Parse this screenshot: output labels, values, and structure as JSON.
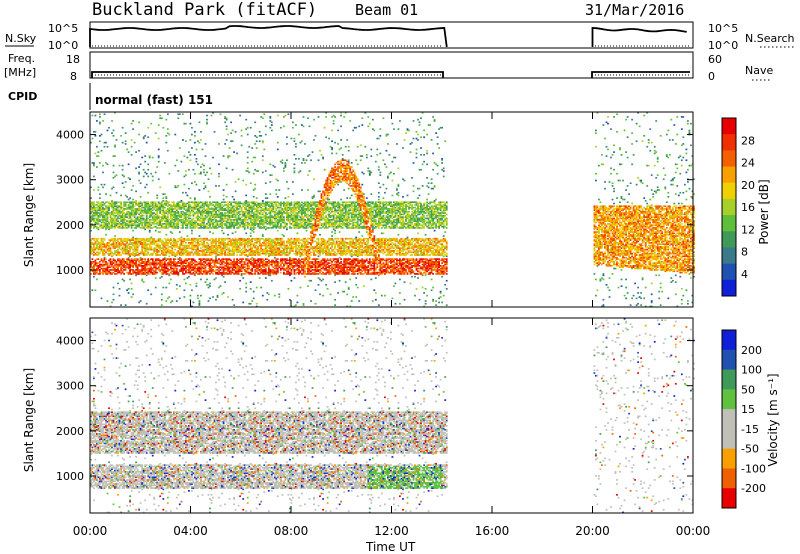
{
  "header": {
    "station": "Buckland Park (fitACF)",
    "beam": "Beam 01",
    "date": "31/Mar/2016"
  },
  "aux_panels": {
    "nsky_label": "N.Sky",
    "nsky_ticks": [
      "10^5",
      "10^0"
    ],
    "nsearch_label": "N.Search",
    "nsearch_ticks": [
      "10^5",
      "10^0"
    ],
    "freq_label_1": "Freq.",
    "freq_label_2": "[MHz]",
    "freq_ticks": [
      "18",
      "8"
    ],
    "nave_label": "Nave",
    "nave_ticks": [
      "60",
      "0"
    ],
    "cpid_label": "CPID",
    "cpid_text": "normal (fast) 151"
  },
  "x_axis": {
    "title": "Time UT",
    "tick_labels": [
      "00:00",
      "04:00",
      "08:00",
      "12:00",
      "16:00",
      "20:00",
      "00:00"
    ],
    "range_hours": [
      0,
      24
    ]
  },
  "panels": {
    "power": {
      "ylabel": "Slant Range [km]",
      "yticks": [
        "1000",
        "2000",
        "3000",
        "4000"
      ],
      "colorbar_label": "Power [dB]",
      "colorbar_ticks": [
        "28",
        "24",
        "20",
        "16",
        "12",
        "8",
        "4"
      ]
    },
    "velocity": {
      "ylabel": "Slant Range [km]",
      "yticks": [
        "1000",
        "2000",
        "3000",
        "4000"
      ],
      "colorbar_label": "Velocity [m s⁻¹]",
      "colorbar_ticks": [
        "200",
        "100",
        "50",
        "15",
        "-15",
        "-50",
        "-100",
        "-200"
      ]
    }
  },
  "chart_data": [
    {
      "type": "heatmap",
      "title": "Power",
      "xlabel": "Time UT",
      "ylabel": "Slant Range [km]",
      "xlim": [
        0,
        24
      ],
      "ylim": [
        180,
        4500
      ],
      "colorbar": {
        "label": "Power [dB]",
        "range": [
          0,
          32
        ],
        "colors": [
          "#1020d8",
          "#2050b0",
          "#3a7a8a",
          "#3f9a5a",
          "#5fbf3a",
          "#a8d02a",
          "#f0d000",
          "#f8a000",
          "#f46000",
          "#f03000",
          "#e80000"
        ]
      },
      "data_gap_hours": [
        14.2,
        20.0
      ],
      "features": [
        {
          "name": "strong band",
          "t0": 0,
          "t1": 14.2,
          "r0": 900,
          "r1": 1250,
          "level_db": 27
        },
        {
          "name": "mid band",
          "t0": 0,
          "t1": 14.2,
          "r0": 1300,
          "r1": 1700,
          "level_db": 20
        },
        {
          "name": "upper band",
          "t0": 0,
          "t1": 14.2,
          "r0": 1900,
          "r1": 2500,
          "level_db": 14
        },
        {
          "name": "rising echo",
          "t0": 8.5,
          "t1": 11.5,
          "r0": 1000,
          "r1": 3300,
          "level_db": 24
        },
        {
          "name": "evening band",
          "t0": 20,
          "t1": 24,
          "r0": 900,
          "r1": 2400,
          "level_db": 22
        }
      ]
    },
    {
      "type": "heatmap",
      "title": "Velocity",
      "xlabel": "Time UT",
      "ylabel": "Slant Range [km]",
      "xlim": [
        0,
        24
      ],
      "ylim": [
        180,
        4500
      ],
      "colorbar": {
        "label": "Velocity [m s⁻¹]",
        "range": [
          -250,
          250
        ],
        "colors": [
          "#e80000",
          "#f06000",
          "#f8a000",
          "#c0c0b8",
          "#c0c0b8",
          "#60c040",
          "#3f9a5a",
          "#2050b0",
          "#1020d8"
        ]
      },
      "data_gap_hours": [
        14.2,
        20.0
      ],
      "features": [
        {
          "name": "ground scatter",
          "t0": 0,
          "t1": 14.2,
          "r0": 700,
          "r1": 1250,
          "velocity": 0
        },
        {
          "name": "positive patch",
          "t0": 11,
          "t1": 14,
          "r0": 700,
          "r1": 1200,
          "velocity": 60
        },
        {
          "name": "mixed band",
          "t0": 0,
          "t1": 14.2,
          "r0": 1500,
          "r1": 2400,
          "velocity": 0
        }
      ]
    }
  ]
}
